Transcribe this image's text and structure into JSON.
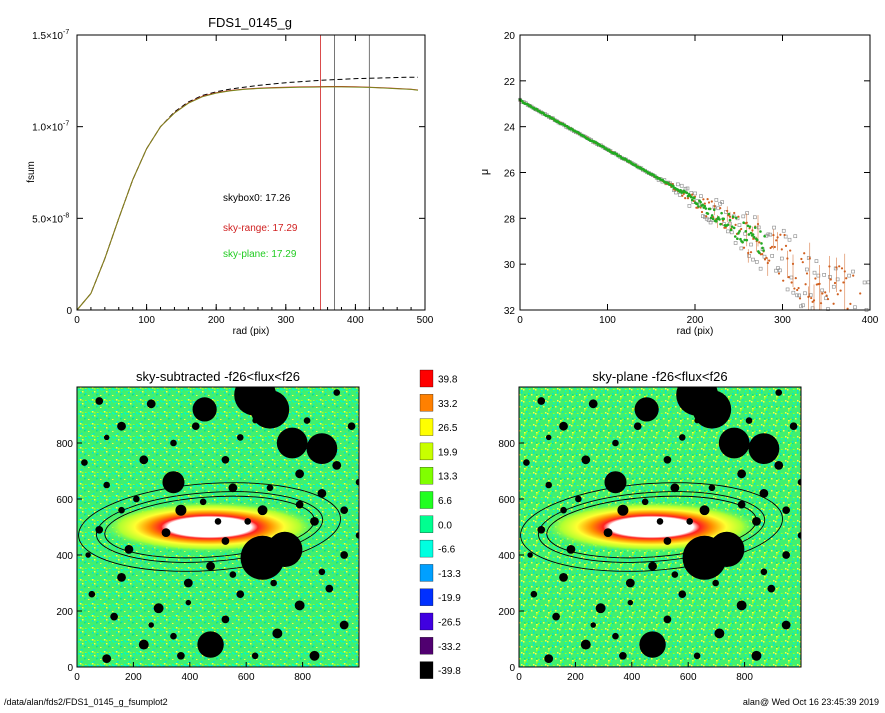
{
  "chart_data": [
    {
      "type": "line",
      "title": "FDS1_0145_g",
      "xlabel": "rad (pix)",
      "ylabel": "fsum",
      "xlim": [
        0,
        500
      ],
      "ylim": [
        0,
        1.5e-07
      ],
      "xticks": [
        "0",
        "100",
        "200",
        "300",
        "400",
        "500"
      ],
      "yticks": [
        {
          "value": 0,
          "label": "0"
        },
        {
          "value": 5e-08,
          "label": "5.0×10",
          "exp": "-8"
        },
        {
          "value": 1e-07,
          "label": "1.0×10",
          "exp": "-7"
        },
        {
          "value": 1.5e-07,
          "label": "1.5×10",
          "exp": "-7"
        }
      ],
      "series": [
        {
          "color": "#000000",
          "style": "dashed",
          "x": [
            0,
            20,
            40,
            60,
            80,
            100,
            120,
            140,
            160,
            180,
            200,
            220,
            240,
            260,
            280,
            300,
            320,
            340,
            360,
            380,
            400,
            420,
            440,
            460,
            480,
            490
          ],
          "y": [
            0,
            9e-09,
            2.8e-08,
            5e-08,
            7.1e-08,
            8.8e-08,
            1e-07,
            1.08e-07,
            1.135e-07,
            1.17e-07,
            1.19e-07,
            1.205e-07,
            1.215e-07,
            1.225e-07,
            1.232e-07,
            1.24e-07,
            1.245e-07,
            1.25e-07,
            1.255e-07,
            1.258e-07,
            1.262e-07,
            1.264e-07,
            1.266e-07,
            1.268e-07,
            1.27e-07,
            1.27e-07
          ]
        },
        {
          "color": "#d02020",
          "style": "solid",
          "x": [
            0,
            20,
            40,
            60,
            80,
            100,
            120,
            140,
            160,
            180,
            200,
            220,
            240,
            260,
            280,
            300,
            320,
            340,
            360,
            380,
            400,
            420,
            440,
            460,
            480,
            490
          ],
          "y": [
            0,
            9e-09,
            2.8e-08,
            5e-08,
            7.1e-08,
            8.8e-08,
            1e-07,
            1.075e-07,
            1.13e-07,
            1.165e-07,
            1.185e-07,
            1.197e-07,
            1.205e-07,
            1.21e-07,
            1.213e-07,
            1.215e-07,
            1.217e-07,
            1.218e-07,
            1.219e-07,
            1.219e-07,
            1.218e-07,
            1.215e-07,
            1.212e-07,
            1.208e-07,
            1.204e-07,
            1.2e-07
          ]
        },
        {
          "color": "#7a8a20",
          "style": "solid",
          "x": [
            0,
            20,
            40,
            60,
            80,
            100,
            120,
            140,
            160,
            180,
            200,
            220,
            240,
            260,
            280,
            300,
            320,
            340,
            360,
            380,
            400,
            420,
            440,
            460,
            480,
            490
          ],
          "y": [
            0,
            9e-09,
            2.8e-08,
            5e-08,
            7.1e-08,
            8.8e-08,
            1e-07,
            1.074e-07,
            1.128e-07,
            1.163e-07,
            1.183e-07,
            1.195e-07,
            1.203e-07,
            1.208e-07,
            1.211e-07,
            1.213e-07,
            1.215e-07,
            1.216e-07,
            1.217e-07,
            1.217e-07,
            1.216e-07,
            1.214e-07,
            1.211e-07,
            1.207e-07,
            1.203e-07,
            1.199e-07
          ]
        }
      ],
      "vlines": [
        {
          "x": 350,
          "color": "#d02020"
        },
        {
          "x": 370,
          "color": "#555555"
        },
        {
          "x": 420,
          "color": "#555555"
        }
      ],
      "annotations": [
        {
          "text": "skybox0: 17.26",
          "color": "#000000"
        },
        {
          "text": "sky-range: 17.29",
          "color": "#d02020"
        },
        {
          "text": "sky-plane: 17.29",
          "color": "#22cc22"
        }
      ]
    },
    {
      "type": "scatter",
      "xlabel": "rad (pix)",
      "ylabel": "μ",
      "xlim": [
        0,
        400
      ],
      "ylim": [
        32,
        20
      ],
      "xticks": [
        "0",
        "100",
        "200",
        "300",
        "400"
      ],
      "yticks": [
        "20",
        "22",
        "24",
        "26",
        "28",
        "30",
        "32"
      ],
      "profile": {
        "mu0": 22.85,
        "slope": 0.0215,
        "break_r": 180,
        "colors": [
          "#22aa22",
          "#d06020",
          "#888888"
        ]
      }
    },
    {
      "type": "heatmap",
      "title": "sky-subtracted -f26<flux<f26",
      "xlim": [
        0,
        1000
      ],
      "ylim": [
        0,
        1000
      ],
      "xticks": [
        "0",
        "200",
        "400",
        "600",
        "800"
      ],
      "yticks": [
        "0",
        "200",
        "400",
        "600",
        "800"
      ]
    },
    {
      "type": "heatmap",
      "title": "sky-plane -f26<flux<f26",
      "xlim": [
        0,
        1000
      ],
      "ylim": [
        0,
        1000
      ],
      "xticks": [
        "0",
        "200",
        "400",
        "600",
        "800"
      ],
      "yticks": [
        "0",
        "200",
        "400",
        "600",
        "800"
      ]
    }
  ],
  "colorbar": {
    "labels": [
      "39.8",
      "33.2",
      "26.5",
      "19.9",
      "13.3",
      "6.6",
      "0.0",
      "-6.6",
      "-13.3",
      "-19.9",
      "-26.5",
      "-33.2",
      "-39.8"
    ],
    "colors": [
      "#ff0000",
      "#ff8000",
      "#ffff00",
      "#c8ff00",
      "#80ff00",
      "#20ff20",
      "#00ff90",
      "#00ffe0",
      "#00a0ff",
      "#0030ff",
      "#4000e0",
      "#500070",
      "#000000"
    ]
  },
  "footer": {
    "left": "/data/alan/fds2/FDS1_0145_g_fsumplot2",
    "right": "alan@  Wed Oct 16 23:45:39 2019"
  },
  "stars": [
    [
      172,
      920,
      22
    ],
    [
      240,
      972,
      38
    ],
    [
      260,
      920,
      35
    ],
    [
      130,
      660,
      20
    ],
    [
      290,
      800,
      28
    ],
    [
      330,
      780,
      28
    ],
    [
      250,
      390,
      40
    ],
    [
      280,
      420,
      32
    ],
    [
      180,
      80,
      24
    ],
    [
      60,
      860,
      8
    ],
    [
      90,
      740,
      8
    ],
    [
      40,
      650,
      6
    ],
    [
      140,
      560,
      10
    ],
    [
      210,
      640,
      8
    ],
    [
      300,
      690,
      8
    ],
    [
      330,
      620,
      8
    ],
    [
      250,
      560,
      9
    ],
    [
      320,
      520,
      8
    ],
    [
      200,
      450,
      7
    ],
    [
      150,
      300,
      8
    ],
    [
      60,
      320,
      8
    ],
    [
      110,
      210,
      9
    ],
    [
      220,
      260,
      7
    ],
    [
      300,
      220,
      9
    ],
    [
      340,
      280,
      7
    ],
    [
      360,
      150,
      8
    ],
    [
      270,
      120,
      9
    ],
    [
      200,
      170,
      7
    ],
    [
      90,
      80,
      9
    ],
    [
      40,
      30,
      8
    ],
    [
      140,
      40,
      7
    ],
    [
      320,
      40,
      9
    ],
    [
      360,
      400,
      7
    ],
    [
      30,
      490,
      7
    ],
    [
      70,
      420,
      8
    ],
    [
      180,
      360,
      8
    ],
    [
      120,
      480,
      8
    ],
    [
      350,
      720,
      8
    ],
    [
      370,
      860,
      7
    ],
    [
      100,
      940,
      8
    ],
    [
      30,
      950,
      7
    ],
    [
      200,
      740,
      7
    ],
    [
      220,
      820,
      6
    ],
    [
      160,
      860,
      7
    ],
    [
      260,
      640,
      6
    ],
    [
      360,
      560,
      7
    ],
    [
      60,
      560,
      6
    ],
    [
      20,
      260,
      6
    ],
    [
      50,
      180,
      7
    ],
    [
      240,
      40,
      6
    ],
    [
      290,
      460,
      6
    ],
    [
      170,
      590,
      6
    ],
    [
      230,
      520,
      6
    ],
    [
      190,
      520,
      6
    ],
    [
      300,
      580,
      7
    ],
    [
      130,
      110,
      6
    ],
    [
      330,
      340,
      6
    ],
    [
      210,
      330,
      6
    ],
    [
      80,
      600,
      6
    ],
    [
      10,
      730,
      6
    ],
    [
      380,
      660,
      6
    ],
    [
      40,
      820,
      5
    ],
    [
      240,
      880,
      5
    ],
    [
      130,
      800,
      6
    ],
    [
      310,
      880,
      6
    ],
    [
      350,
      980,
      6
    ],
    [
      380,
      470,
      6
    ],
    [
      15,
      400,
      5
    ],
    [
      265,
      300,
      6
    ],
    [
      150,
      230,
      5
    ],
    [
      100,
      150,
      5
    ]
  ]
}
